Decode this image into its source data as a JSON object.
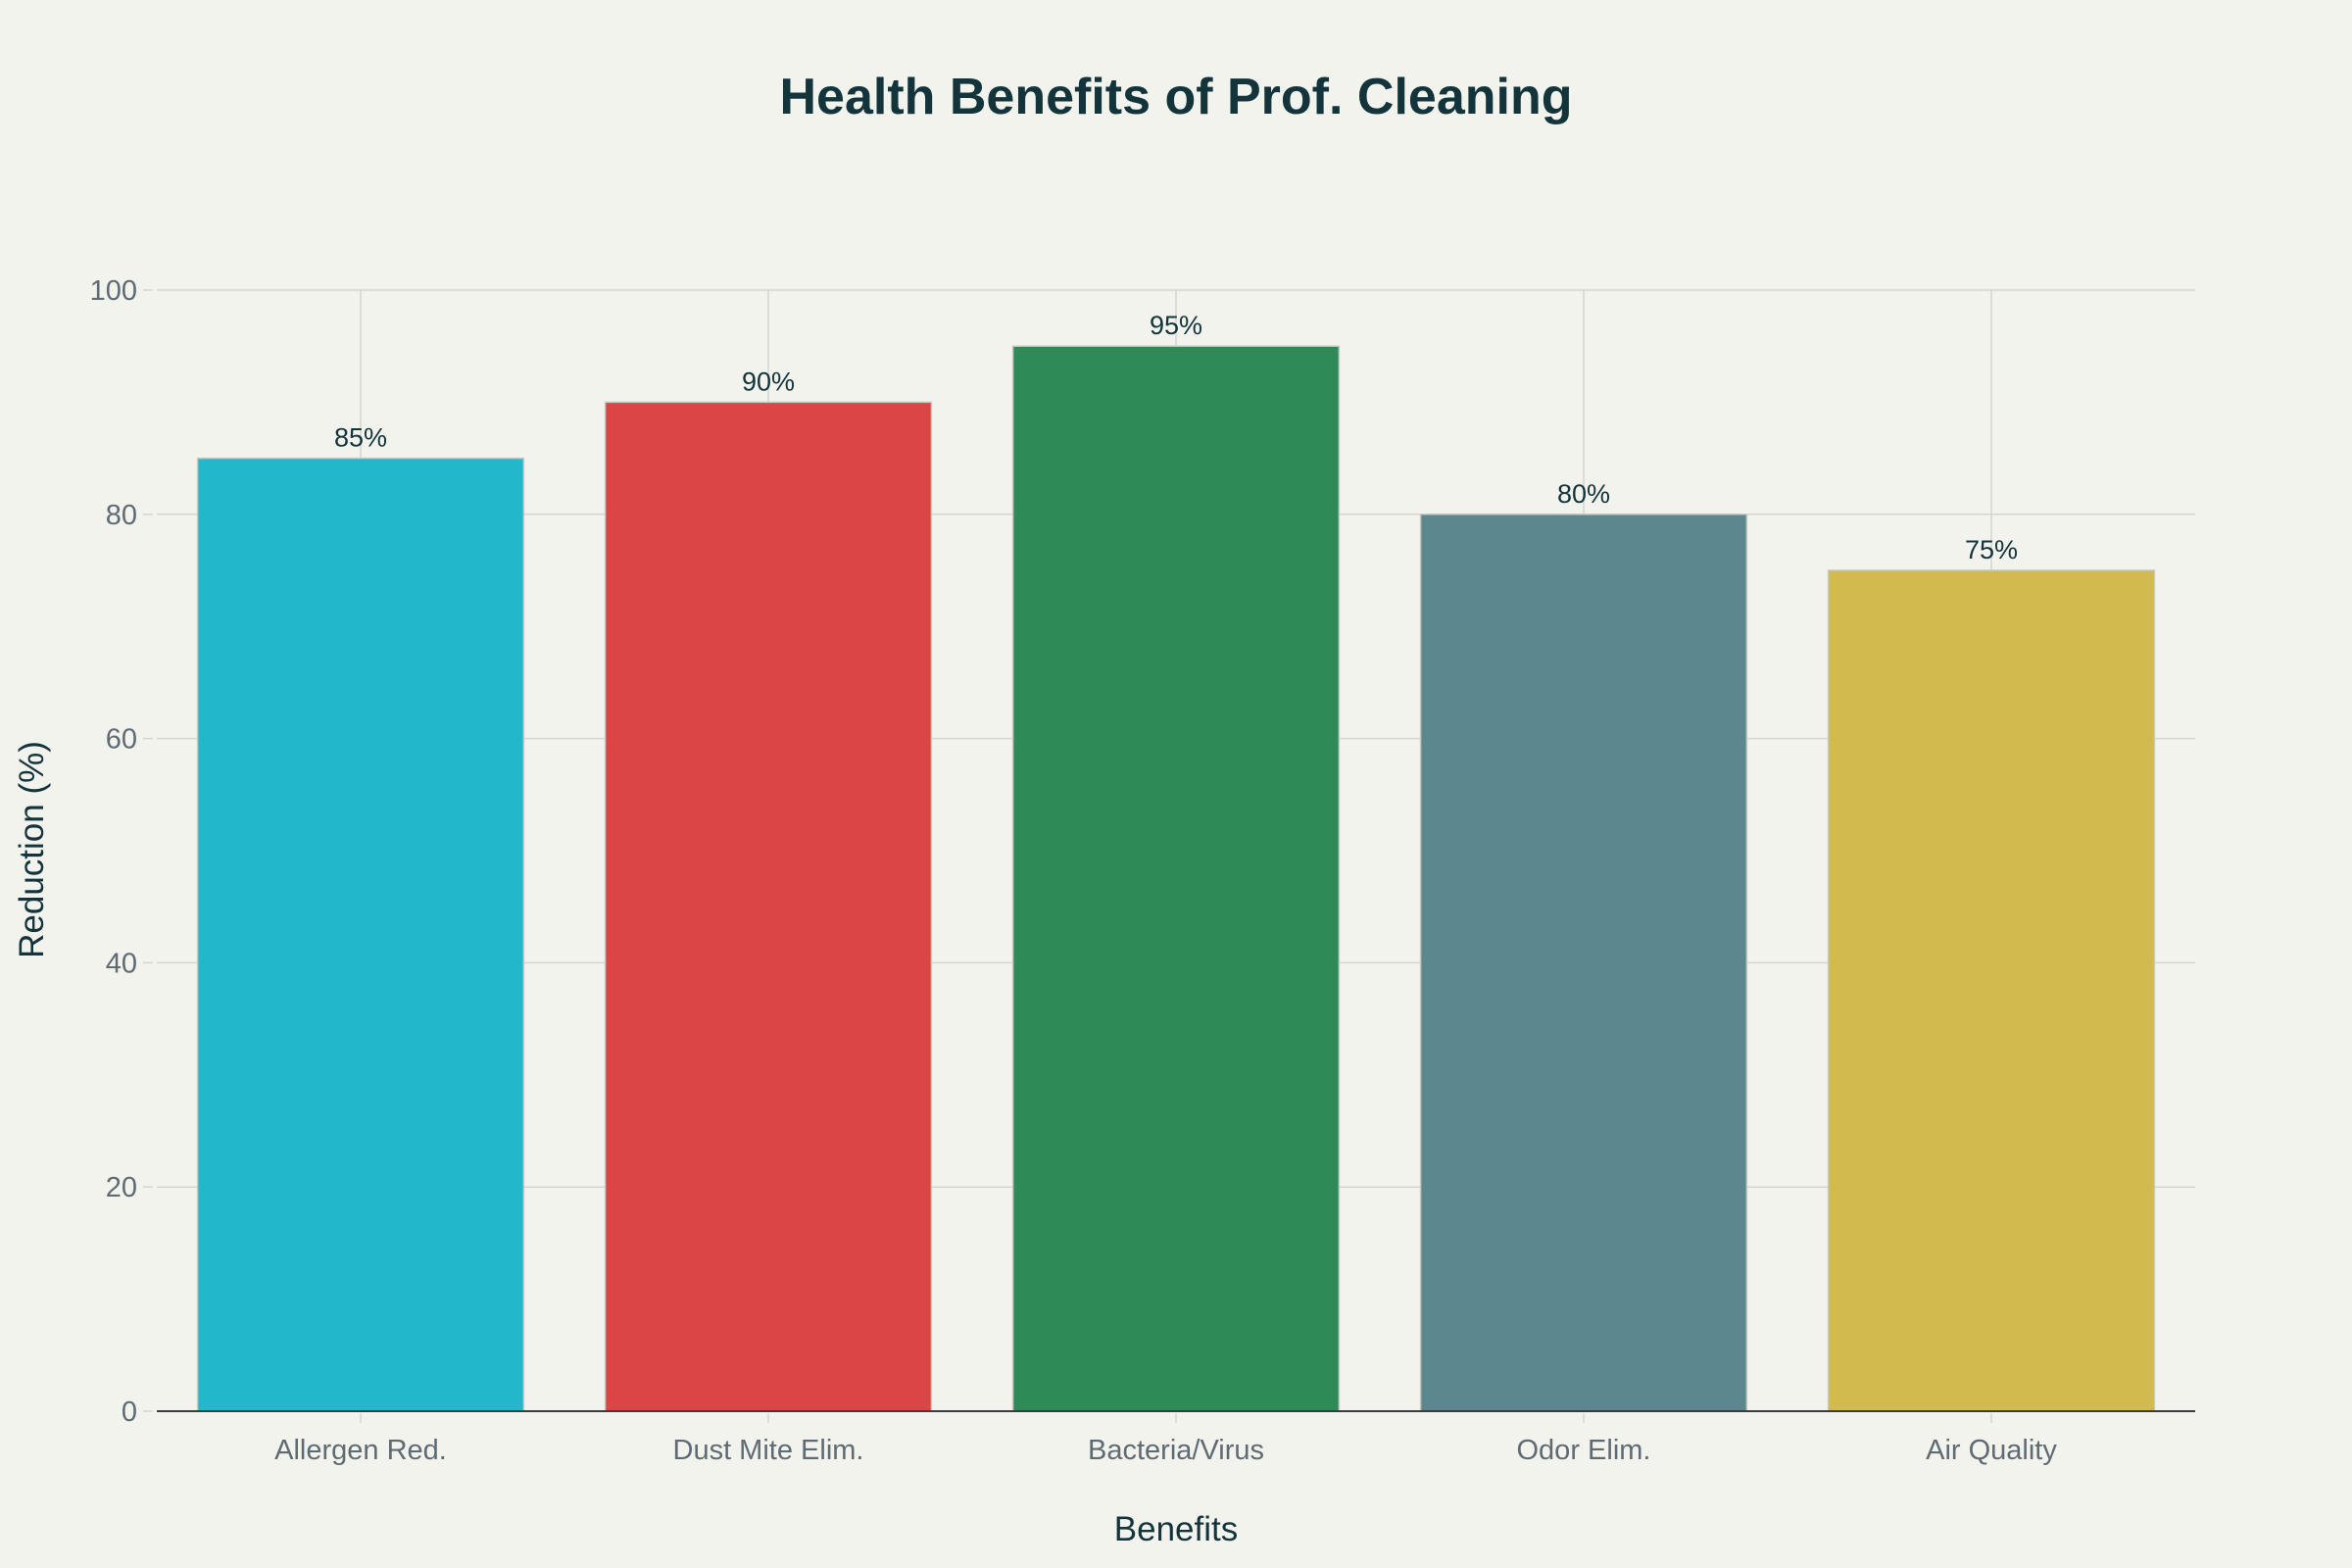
{
  "chart_data": {
    "type": "bar",
    "title": "Health Benefits of Prof. Cleaning",
    "xlabel": "Benefits",
    "ylabel": "Reduction (%)",
    "categories": [
      "Allergen Red.",
      "Dust Mite Elim.",
      "Bacteria/Virus",
      "Odor Elim.",
      "Air Quality"
    ],
    "values": [
      85,
      90,
      95,
      80,
      75
    ],
    "data_labels": [
      "85%",
      "90%",
      "95%",
      "80%",
      "75%"
    ],
    "colors": [
      "#21B8CC",
      "#DB4545",
      "#2E8B57",
      "#5D878F",
      "#D2BA4C"
    ],
    "ylim": [
      0,
      100
    ],
    "yticks": [
      0,
      20,
      40,
      60,
      80,
      100
    ],
    "grid": true,
    "legend": "none",
    "background": "#F3F3EE"
  }
}
